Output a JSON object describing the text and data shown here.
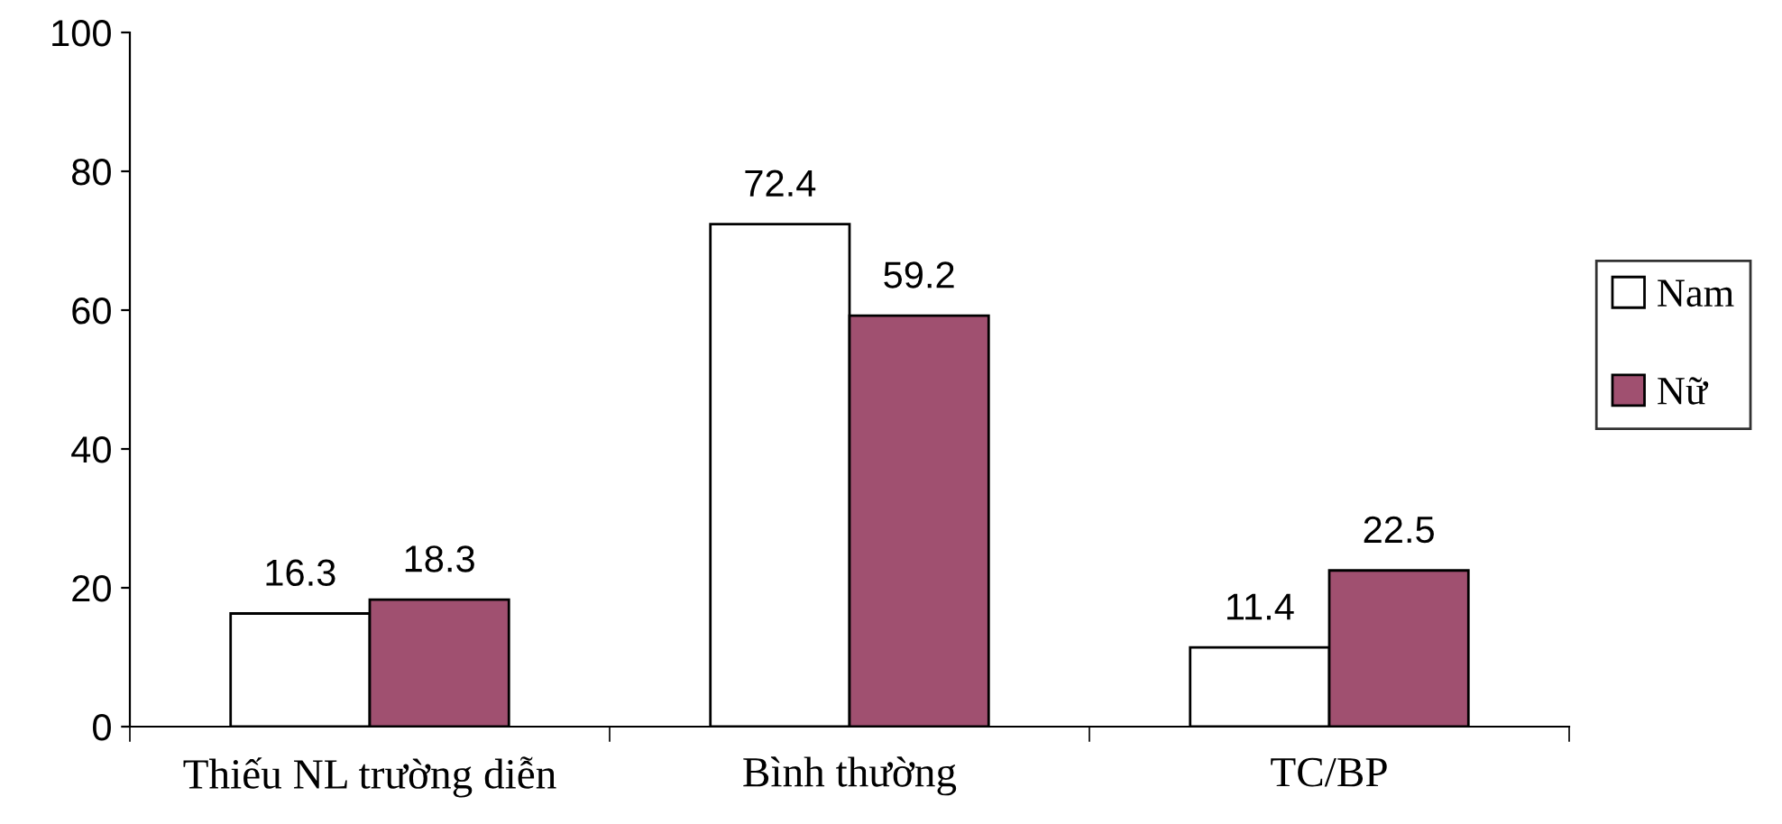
{
  "chart_data": {
    "type": "bar",
    "categories": [
      "Thiếu NL trường diễn",
      "Bình thường",
      "TC/BP"
    ],
    "series": [
      {
        "name": "Nam",
        "color": "#ffffff",
        "values": [
          16.3,
          72.4,
          11.4
        ]
      },
      {
        "name": "Nữ",
        "color": "#a05070",
        "values": [
          18.3,
          59.2,
          22.5
        ]
      }
    ],
    "ylim": [
      0,
      100
    ],
    "yticks": [
      0,
      20,
      40,
      60,
      80,
      100
    ],
    "data_labels": true,
    "legend": "right",
    "grid": false
  }
}
